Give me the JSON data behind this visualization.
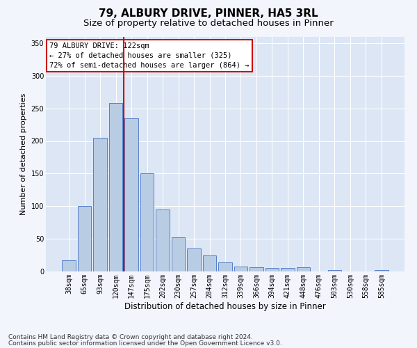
{
  "title1": "79, ALBURY DRIVE, PINNER, HA5 3RL",
  "title2": "Size of property relative to detached houses in Pinner",
  "xlabel": "Distribution of detached houses by size in Pinner",
  "ylabel": "Number of detached properties",
  "categories": [
    "38sqm",
    "65sqm",
    "93sqm",
    "120sqm",
    "147sqm",
    "175sqm",
    "202sqm",
    "230sqm",
    "257sqm",
    "284sqm",
    "312sqm",
    "339sqm",
    "366sqm",
    "394sqm",
    "421sqm",
    "448sqm",
    "476sqm",
    "503sqm",
    "530sqm",
    "558sqm",
    "585sqm"
  ],
  "values": [
    17,
    100,
    205,
    258,
    235,
    150,
    95,
    52,
    35,
    25,
    14,
    8,
    6,
    5,
    5,
    6,
    0,
    2,
    0,
    0,
    2
  ],
  "bar_color": "#b8cce4",
  "bar_edge_color": "#4472c4",
  "background_color": "#dce6f5",
  "fig_background_color": "#f2f5fc",
  "grid_color": "#ffffff",
  "vline_x": 3.5,
  "vline_color": "#cc0000",
  "annotation_text": "79 ALBURY DRIVE: 122sqm\n← 27% of detached houses are smaller (325)\n72% of semi-detached houses are larger (864) →",
  "annotation_box_color": "#ffffff",
  "annotation_box_edge": "#cc0000",
  "footer1": "Contains HM Land Registry data © Crown copyright and database right 2024.",
  "footer2": "Contains public sector information licensed under the Open Government Licence v3.0.",
  "ylim": [
    0,
    360
  ],
  "title1_fontsize": 11,
  "title2_fontsize": 9.5,
  "xlabel_fontsize": 8.5,
  "ylabel_fontsize": 8,
  "tick_fontsize": 7,
  "footer_fontsize": 6.5,
  "annotation_fontsize": 7.5
}
